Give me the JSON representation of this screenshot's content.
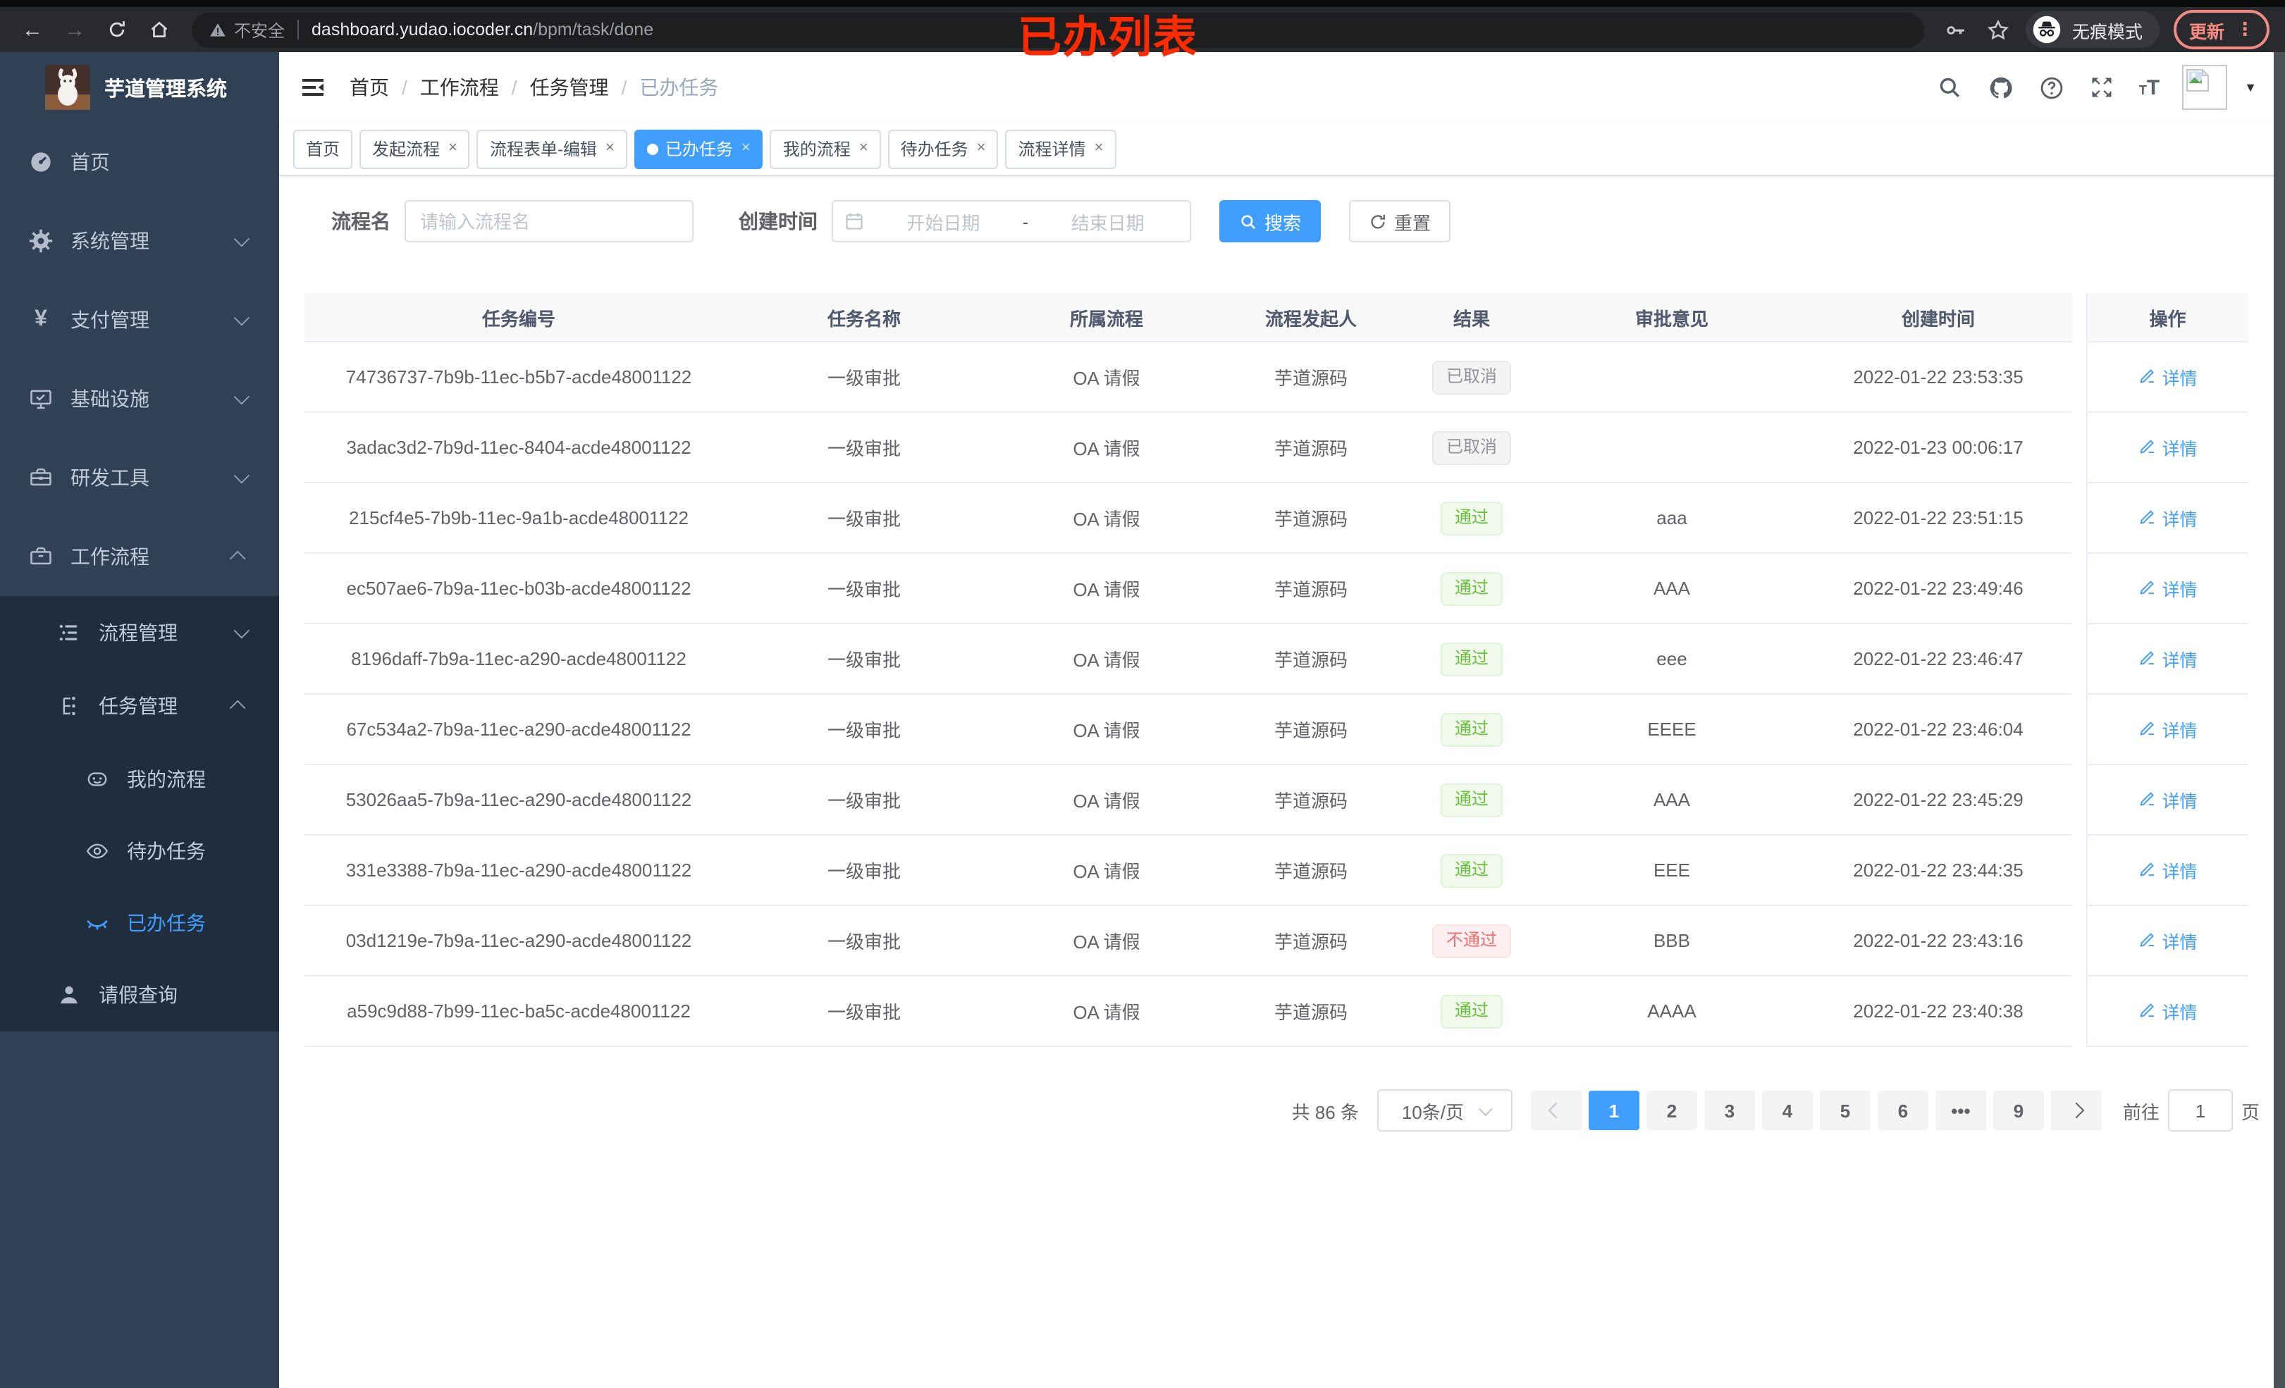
{
  "browser": {
    "security_label": "不安全",
    "url_host": "dashboard.yudao.iocoder.cn",
    "url_path": "/bpm/task/done",
    "annotation": "已办列表",
    "incognito_label": "无痕模式",
    "update_label": "更新"
  },
  "sidebar": {
    "logo_title": "芋道管理系统",
    "items": [
      {
        "id": "home",
        "label": "首页",
        "icon": "dashboard-icon",
        "level": 1,
        "sub": false
      },
      {
        "id": "system",
        "label": "系统管理",
        "icon": "gear-icon",
        "level": 1,
        "sub": false,
        "chevron": "down"
      },
      {
        "id": "payment",
        "label": "支付管理",
        "icon": "yen-icon",
        "level": 1,
        "sub": false,
        "chevron": "down"
      },
      {
        "id": "infra",
        "label": "基础设施",
        "icon": "monitor-icon",
        "level": 1,
        "sub": false,
        "chevron": "down"
      },
      {
        "id": "devtools",
        "label": "研发工具",
        "icon": "toolbox-icon",
        "level": 1,
        "sub": false,
        "chevron": "down"
      },
      {
        "id": "workflow",
        "label": "工作流程",
        "icon": "briefcase-icon",
        "level": 1,
        "sub": false,
        "chevron": "up"
      },
      {
        "id": "process-mgmt",
        "label": "流程管理",
        "icon": "list-tree-icon",
        "level": 2,
        "sub": true,
        "chevron": "down"
      },
      {
        "id": "task-mgmt",
        "label": "任务管理",
        "icon": "org-tree-icon",
        "level": 2,
        "sub": true,
        "chevron": "up"
      },
      {
        "id": "my-process",
        "label": "我的流程",
        "icon": "robot-icon",
        "level": 3,
        "sub": true
      },
      {
        "id": "todo-task",
        "label": "待办任务",
        "icon": "eye-open-icon",
        "level": 3,
        "sub": true
      },
      {
        "id": "done-task",
        "label": "已办任务",
        "icon": "eye-closed-icon",
        "level": 3,
        "sub": true,
        "active": true
      },
      {
        "id": "leave-query",
        "label": "请假查询",
        "icon": "user-icon",
        "level": 2,
        "sub": true
      }
    ]
  },
  "navbar": {
    "breadcrumb": [
      "首页",
      "工作流程",
      "任务管理",
      "已办任务"
    ]
  },
  "tabs": [
    {
      "label": "首页",
      "closable": false,
      "active": false
    },
    {
      "label": "发起流程",
      "closable": true,
      "active": false
    },
    {
      "label": "流程表单-编辑",
      "closable": true,
      "active": false
    },
    {
      "label": "已办任务",
      "closable": true,
      "active": true
    },
    {
      "label": "我的流程",
      "closable": true,
      "active": false
    },
    {
      "label": "待办任务",
      "closable": true,
      "active": false
    },
    {
      "label": "流程详情",
      "closable": true,
      "active": false
    }
  ],
  "filters": {
    "name_label": "流程名",
    "name_placeholder": "请输入流程名",
    "name_value": "",
    "date_label": "创建时间",
    "date_start_placeholder": "开始日期",
    "date_separator": "-",
    "date_end_placeholder": "结束日期",
    "search_label": "搜索",
    "reset_label": "重置"
  },
  "table": {
    "columns": [
      "任务编号",
      "任务名称",
      "所属流程",
      "流程发起人",
      "结果",
      "审批意见",
      "创建时间",
      "操作"
    ],
    "action_label": "详情",
    "rows": [
      {
        "id": "74736737-7b9b-11ec-b5b7-acde48001122",
        "name": "一级审批",
        "process": "OA 请假",
        "starter": "芋道源码",
        "result": "已取消",
        "result_type": "info",
        "comment": "",
        "created": "2022-01-22 23:53:35"
      },
      {
        "id": "3adac3d2-7b9d-11ec-8404-acde48001122",
        "name": "一级审批",
        "process": "OA 请假",
        "starter": "芋道源码",
        "result": "已取消",
        "result_type": "info",
        "comment": "",
        "created": "2022-01-23 00:06:17"
      },
      {
        "id": "215cf4e5-7b9b-11ec-9a1b-acde48001122",
        "name": "一级审批",
        "process": "OA 请假",
        "starter": "芋道源码",
        "result": "通过",
        "result_type": "success",
        "comment": "aaa",
        "created": "2022-01-22 23:51:15"
      },
      {
        "id": "ec507ae6-7b9a-11ec-b03b-acde48001122",
        "name": "一级审批",
        "process": "OA 请假",
        "starter": "芋道源码",
        "result": "通过",
        "result_type": "success",
        "comment": "AAA",
        "created": "2022-01-22 23:49:46"
      },
      {
        "id": "8196daff-7b9a-11ec-a290-acde48001122",
        "name": "一级审批",
        "process": "OA 请假",
        "starter": "芋道源码",
        "result": "通过",
        "result_type": "success",
        "comment": "eee",
        "created": "2022-01-22 23:46:47"
      },
      {
        "id": "67c534a2-7b9a-11ec-a290-acde48001122",
        "name": "一级审批",
        "process": "OA 请假",
        "starter": "芋道源码",
        "result": "通过",
        "result_type": "success",
        "comment": "EEEE",
        "created": "2022-01-22 23:46:04"
      },
      {
        "id": "53026aa5-7b9a-11ec-a290-acde48001122",
        "name": "一级审批",
        "process": "OA 请假",
        "starter": "芋道源码",
        "result": "通过",
        "result_type": "success",
        "comment": "AAA",
        "created": "2022-01-22 23:45:29"
      },
      {
        "id": "331e3388-7b9a-11ec-a290-acde48001122",
        "name": "一级审批",
        "process": "OA 请假",
        "starter": "芋道源码",
        "result": "通过",
        "result_type": "success",
        "comment": "EEE",
        "created": "2022-01-22 23:44:35"
      },
      {
        "id": "03d1219e-7b9a-11ec-a290-acde48001122",
        "name": "一级审批",
        "process": "OA 请假",
        "starter": "芋道源码",
        "result": "不通过",
        "result_type": "danger",
        "comment": "BBB",
        "created": "2022-01-22 23:43:16"
      },
      {
        "id": "a59c9d88-7b99-11ec-ba5c-acde48001122",
        "name": "一级审批",
        "process": "OA 请假",
        "starter": "芋道源码",
        "result": "通过",
        "result_type": "success",
        "comment": "AAAA",
        "created": "2022-01-22 23:40:38"
      }
    ]
  },
  "pagination": {
    "total_label": "共 86 条",
    "page_size_label": "10条/页",
    "pages": [
      "1",
      "2",
      "3",
      "4",
      "5",
      "6",
      "•••",
      "9"
    ],
    "active_page": "1",
    "goto_label": "前往",
    "goto_value": "1",
    "page_unit_label": "页"
  },
  "colors": {
    "primary": "#409eff",
    "sidebar_bg": "#304156",
    "submenu_bg": "#1f2d3d",
    "success": "#67c23a",
    "danger": "#f56c6c",
    "info": "#909399",
    "annotation_red": "#ff2a00"
  }
}
